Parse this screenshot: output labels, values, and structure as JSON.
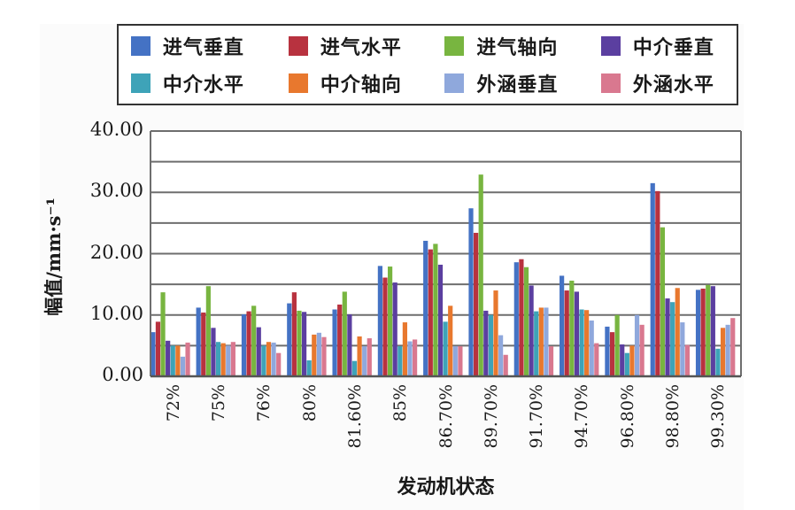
{
  "chart_data": {
    "type": "bar",
    "title": "",
    "xlabel": "发动机状态",
    "ylabel": "幅值/mm·s⁻¹",
    "ylim": [
      0,
      40
    ],
    "yticks": [
      "0.00",
      "10.00",
      "20.00",
      "30.00",
      "40.00"
    ],
    "grid": true,
    "grid_step": 5,
    "legend_position": "top",
    "categories": [
      "72%",
      "75%",
      "76%",
      "80%",
      "81.60%",
      "85%",
      "86.70%",
      "89.70%",
      "91.70%",
      "94.70%",
      "96.80%",
      "98.80%",
      "99.30%"
    ],
    "series": [
      {
        "name": "进气垂直",
        "color": "#4472c4",
        "values": [
          7.2,
          11.2,
          10.1,
          11.9,
          10.9,
          18.0,
          22.1,
          27.4,
          18.6,
          16.4,
          8.1,
          31.5,
          14.1
        ]
      },
      {
        "name": "进气水平",
        "color": "#b8323f",
        "values": [
          8.9,
          10.4,
          10.6,
          13.7,
          11.7,
          16.1,
          20.7,
          23.4,
          19.1,
          14.0,
          7.2,
          30.2,
          14.3
        ]
      },
      {
        "name": "进气轴向",
        "color": "#78b540",
        "values": [
          13.7,
          14.7,
          11.5,
          10.7,
          13.8,
          17.9,
          21.6,
          32.9,
          17.8,
          15.6,
          10.0,
          24.3,
          14.9
        ]
      },
      {
        "name": "中介垂直",
        "color": "#5b3fa0",
        "values": [
          5.8,
          7.9,
          8.0,
          10.5,
          10.1,
          15.3,
          18.2,
          10.7,
          14.8,
          13.8,
          5.2,
          12.7,
          14.7
        ]
      },
      {
        "name": "中介水平",
        "color": "#3ea3b8",
        "values": [
          5.0,
          5.6,
          5.0,
          2.6,
          2.5,
          4.9,
          8.9,
          10.0,
          10.6,
          10.9,
          3.8,
          12.1,
          4.5
        ]
      },
      {
        "name": "中介轴向",
        "color": "#e8782e",
        "values": [
          5.0,
          5.4,
          5.6,
          6.8,
          6.5,
          8.8,
          11.5,
          14.0,
          11.2,
          10.8,
          5.0,
          14.4,
          7.9
        ]
      },
      {
        "name": "外涵垂直",
        "color": "#8fa8dc",
        "values": [
          3.2,
          5.0,
          5.5,
          7.1,
          4.9,
          5.7,
          4.9,
          6.7,
          11.2,
          9.1,
          10.0,
          8.8,
          8.4
        ]
      },
      {
        "name": "外涵水平",
        "color": "#d9788f",
        "values": [
          5.5,
          5.6,
          3.8,
          6.4,
          6.2,
          6.0,
          4.9,
          3.5,
          4.9,
          5.4,
          8.4,
          5.1,
          9.5
        ]
      }
    ]
  }
}
